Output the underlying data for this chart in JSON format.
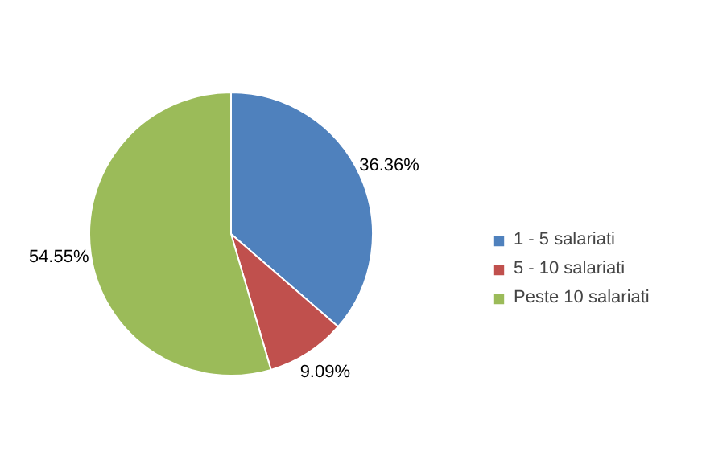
{
  "chart_data": {
    "type": "pie",
    "categories": [
      "1 - 5 salariati",
      "5 - 10 salariati",
      "Peste 10 salariati"
    ],
    "values": [
      36.36,
      9.09,
      54.55
    ],
    "colors": [
      "#4f81bd",
      "#c0504d",
      "#9bbb59"
    ],
    "value_labels": [
      "36.36%",
      "9.09%",
      "54.55%"
    ],
    "legend": "right"
  }
}
